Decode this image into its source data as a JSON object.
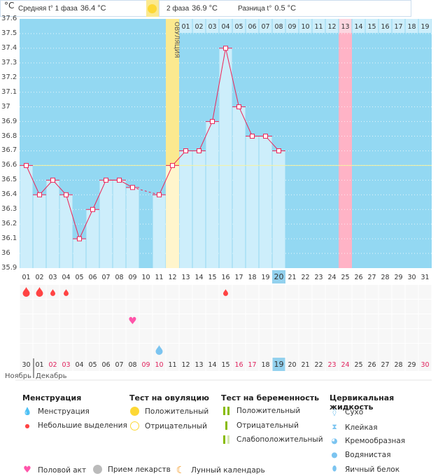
{
  "unit": "°C",
  "header": {
    "phase1_label": "Средняя t° 1 фаза",
    "phase1_value": "36.4 °C",
    "phase2_label": "2 фаза",
    "phase2_value": "36.9 °C",
    "diff_label": "Разница t°",
    "diff_value": "0.5 °C",
    "ovulation_label": "ОВУЛЯЦИЯ"
  },
  "colors": {
    "bg": "#93d8f2",
    "bar": "#cdeefb",
    "line": "#ee2255",
    "ovulation": "#fbe98f",
    "highlight": "#ffb3c6",
    "today": "#93d1ee"
  },
  "chart_data": {
    "type": "line",
    "ylabel": "°C",
    "ylim": [
      35.9,
      37.6
    ],
    "y_ticks": [
      "37.6",
      "37.5",
      "37.4",
      "37.3",
      "37.2",
      "37.1",
      "37",
      "36.9",
      "36.8",
      "36.7",
      "36.6",
      "36.5",
      "36.4",
      "36.3",
      "36.2",
      "36.1",
      "36",
      "35.9"
    ],
    "cycle_days": [
      "01",
      "02",
      "03",
      "04",
      "05",
      "06",
      "07",
      "08",
      "09",
      "10",
      "11",
      "12",
      "13",
      "14",
      "15",
      "16",
      "17",
      "18",
      "19",
      "20",
      "21",
      "22",
      "23",
      "24",
      "25",
      "26",
      "27",
      "28",
      "29",
      "30",
      "31"
    ],
    "temperatures": [
      36.6,
      36.4,
      36.5,
      36.4,
      36.1,
      36.3,
      36.5,
      36.5,
      36.45,
      null,
      36.4,
      36.6,
      36.7,
      36.7,
      36.9,
      37.4,
      37.0,
      36.8,
      36.8,
      36.7,
      null,
      null,
      null,
      null,
      null,
      null,
      null,
      null,
      null,
      null,
      null
    ],
    "coverline": 36.6,
    "ovulation_day": 12,
    "current_day": 20,
    "phase2_days": [
      "01",
      "02",
      "03",
      "04",
      "05",
      "06",
      "07",
      "08",
      "09",
      "10",
      "11",
      "12",
      "13",
      "14",
      "15",
      "16",
      "17",
      "18",
      "19"
    ],
    "phase2_highlight": "13",
    "dates": [
      "30",
      "01",
      "02",
      "03",
      "04",
      "05",
      "06",
      "07",
      "08",
      "09",
      "10",
      "11",
      "12",
      "13",
      "14",
      "15",
      "16",
      "17",
      "18",
      "19",
      "20",
      "21",
      "22",
      "23",
      "24",
      "25",
      "26",
      "27",
      "28",
      "29",
      "30"
    ],
    "weekend_dates_idx": [
      2,
      3,
      9,
      10,
      16,
      17,
      23,
      24,
      30
    ],
    "months": [
      "Ноябрь",
      "Декабрь"
    ]
  },
  "markers": {
    "menstruation_big": [
      1,
      2
    ],
    "menstruation_small": [
      3,
      4,
      16
    ],
    "intercourse": [
      9
    ],
    "cervical_watery": [
      11
    ]
  },
  "legend": {
    "menstruation": {
      "title": "Менструация",
      "items": [
        "Менструация",
        "Небольшие выделения"
      ]
    },
    "ovulation_test": {
      "title": "Тест на овуляцию",
      "items": [
        "Положительный",
        "Отрицательный"
      ]
    },
    "pregnancy_test": {
      "title": "Тест на беременность",
      "items": [
        "Положительный",
        "Отрицательный",
        "Слабоположительный"
      ]
    },
    "cervical": {
      "title": "Цервикальная жидкость",
      "items": [
        "Сухо",
        "Клейкая",
        "Кремообразная",
        "Водянистая",
        "Яичный белок"
      ]
    },
    "other": [
      "Половой акт",
      "Прием лекарств",
      "Лунный календарь"
    ]
  }
}
